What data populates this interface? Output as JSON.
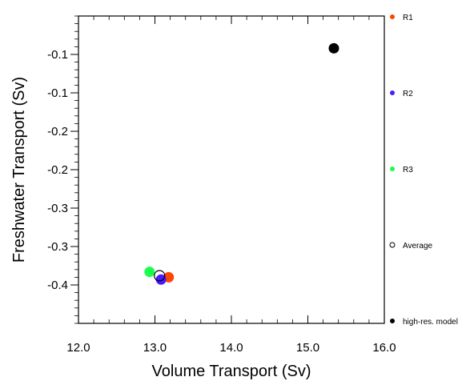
{
  "chart_data": {
    "type": "scatter",
    "xlabel": "Volume Transport (Sv)",
    "ylabel": "Freshwater Transport (Sv)",
    "xlim": [
      12.0,
      16.0
    ],
    "ylim": [
      -0.4,
      0.0
    ],
    "x_ticks": [
      {
        "value": 12.0,
        "label": "12.0"
      },
      {
        "value": 13.0,
        "label": "13.0"
      },
      {
        "value": 14.0,
        "label": "14.0"
      },
      {
        "value": 15.0,
        "label": "15.0"
      },
      {
        "value": 16.0,
        "label": "16.0"
      }
    ],
    "y_ticks": [
      {
        "value": -0.05,
        "label": "-0.1"
      },
      {
        "value": -0.1,
        "label": "-0.1"
      },
      {
        "value": -0.15,
        "label": "-0.2"
      },
      {
        "value": -0.2,
        "label": "-0.2"
      },
      {
        "value": -0.25,
        "label": "-0.3"
      },
      {
        "value": -0.3,
        "label": "-0.3"
      },
      {
        "value": -0.35,
        "label": "-0.4"
      }
    ],
    "grid": false,
    "legend_position": "right",
    "series": [
      {
        "name": "R1",
        "color": "#ff4500",
        "marker": "filled-circle",
        "x": 13.18,
        "y": -0.34
      },
      {
        "name": "R2",
        "color": "#4b19ff",
        "marker": "filled-circle",
        "x": 13.08,
        "y": -0.343
      },
      {
        "name": "R3",
        "color": "#19ff4b",
        "marker": "filled-circle",
        "x": 12.93,
        "y": -0.333
      },
      {
        "name": "Average",
        "color": "#000000",
        "marker": "open-circle",
        "x": 13.06,
        "y": -0.338
      },
      {
        "name": "high-res. model",
        "color": "#000000",
        "marker": "filled-circle",
        "x": 15.34,
        "y": -0.042
      }
    ]
  }
}
